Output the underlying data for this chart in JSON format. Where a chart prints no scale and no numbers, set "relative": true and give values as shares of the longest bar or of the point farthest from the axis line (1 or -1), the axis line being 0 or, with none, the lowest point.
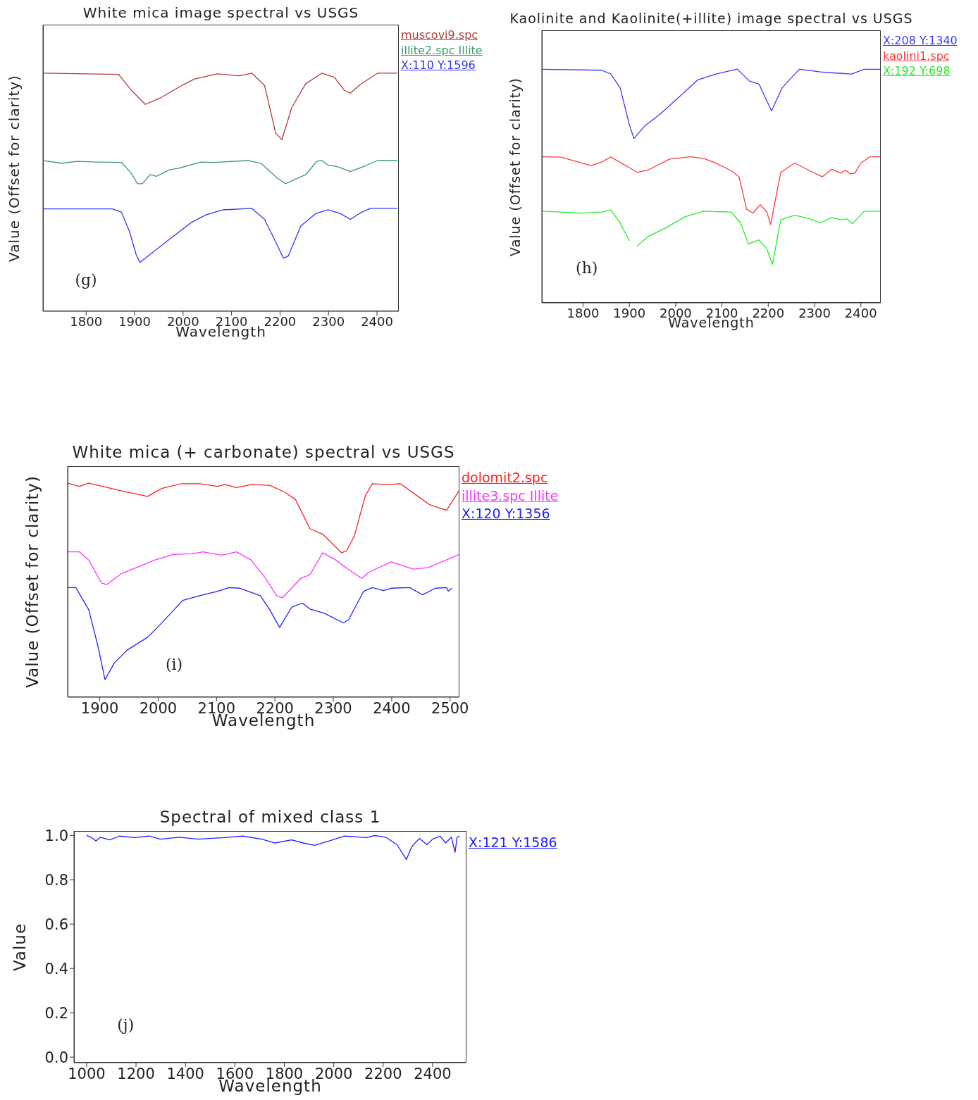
{
  "chart_data": [
    {
      "type": "line",
      "title": "White mica image spectral vs USGS",
      "xlabel": "Wavelength",
      "ylabel": "Value (Offset for clarity)",
      "relative": true,
      "tick_labels": "x",
      "legend": "right",
      "xlim": [
        1711,
        2445
      ],
      "xticks": [
        1800,
        1900,
        2000,
        2100,
        2200,
        2300,
        2400
      ],
      "annotations": [
        "(g)"
      ],
      "series": [
        {
          "name": "muscovi9.spc",
          "color": "#b03a3a",
          "x": [
            1712,
            1867,
            1893,
            1922,
            1952,
            1998,
            2024,
            2070,
            2116,
            2142,
            2168,
            2191,
            2204,
            2224,
            2253,
            2286,
            2312,
            2332,
            2345,
            2365,
            2401,
            2442
          ],
          "values": [
            1.0,
            0.995,
            0.929,
            0.869,
            0.895,
            0.949,
            0.976,
            0.997,
            0.989,
            1.0,
            0.949,
            0.748,
            0.721,
            0.855,
            0.956,
            1.0,
            0.983,
            0.929,
            0.916,
            0.952,
            1.0,
            1.0
          ]
        },
        {
          "name": "illite2.spc Illite",
          "color": "#3c9a6a",
          "x": [
            1712,
            1749,
            1782,
            1821,
            1873,
            1893,
            1906,
            1916,
            1932,
            1945,
            1972,
            1991,
            2037,
            2063,
            2135,
            2161,
            2194,
            2211,
            2253,
            2276,
            2286,
            2299,
            2319,
            2345,
            2371,
            2401,
            2442
          ],
          "values": [
            0.633,
            0.622,
            0.63,
            0.627,
            0.625,
            0.58,
            0.536,
            0.536,
            0.574,
            0.567,
            0.594,
            0.601,
            0.627,
            0.625,
            0.633,
            0.621,
            0.56,
            0.536,
            0.574,
            0.63,
            0.634,
            0.614,
            0.607,
            0.587,
            0.607,
            0.633,
            0.633
          ]
        },
        {
          "name": "X:110 Y:1596",
          "color": "#3333ff",
          "x": [
            1712,
            1854,
            1873,
            1890,
            1903,
            1911,
            1932,
            1978,
            2017,
            2047,
            2083,
            2142,
            2168,
            2194,
            2207,
            2217,
            2243,
            2273,
            2299,
            2325,
            2345,
            2368,
            2387,
            2442
          ],
          "values": [
            0.43,
            0.43,
            0.416,
            0.332,
            0.239,
            0.205,
            0.239,
            0.312,
            0.373,
            0.405,
            0.426,
            0.432,
            0.386,
            0.279,
            0.223,
            0.232,
            0.359,
            0.41,
            0.426,
            0.41,
            0.386,
            0.416,
            0.432,
            0.432
          ]
        }
      ]
    },
    {
      "type": "line",
      "title": "Kaolinite and Kaolinite(+illite) image spectral vs USGS",
      "xlabel": "Wavelength",
      "ylabel": "Value (Offset for clarity)",
      "relative": true,
      "tick_labels": "x",
      "legend": "right",
      "xlim": [
        1711,
        2443
      ],
      "xticks": [
        1800,
        1900,
        2000,
        2100,
        2200,
        2300,
        2400
      ],
      "annotations": [
        "(h)"
      ],
      "series": [
        {
          "name": "X:208 Y:1340",
          "color": "#3a3aff",
          "x": [
            1711,
            1840,
            1860,
            1880,
            1900,
            1910,
            1933,
            1967,
            2007,
            2047,
            2087,
            2133,
            2160,
            2180,
            2207,
            2230,
            2267,
            2313,
            2347,
            2380,
            2407,
            2443
          ],
          "values": [
            0.999,
            0.995,
            0.979,
            0.92,
            0.762,
            0.703,
            0.756,
            0.808,
            0.88,
            0.953,
            0.979,
            1.0,
            0.948,
            0.936,
            0.821,
            0.92,
            0.999,
            0.988,
            0.983,
            0.979,
            0.999,
            0.999
          ]
        },
        {
          "name": "kaolini1.spc",
          "color": "#ff3a3a",
          "x": [
            1711,
            1753,
            1787,
            1817,
            1840,
            1860,
            1917,
            1940,
            1987,
            2033,
            2060,
            2087,
            2120,
            2137,
            2153,
            2167,
            2183,
            2197,
            2205,
            2227,
            2257,
            2293,
            2317,
            2337,
            2357,
            2367,
            2377,
            2387,
            2400,
            2420,
            2443
          ],
          "values": [
            0.625,
            0.623,
            0.604,
            0.587,
            0.602,
            0.624,
            0.558,
            0.568,
            0.615,
            0.625,
            0.618,
            0.598,
            0.565,
            0.539,
            0.401,
            0.384,
            0.42,
            0.388,
            0.335,
            0.558,
            0.598,
            0.562,
            0.539,
            0.572,
            0.555,
            0.568,
            0.552,
            0.555,
            0.598,
            0.625,
            0.625
          ]
        },
        {
          "name": "X:192 Y:698",
          "color": "#22ee22",
          "x": [
            1711,
            1800,
            1840,
            1860,
            1880,
            1900,
            1908,
            1917,
            1940,
            1980,
            2020,
            2060,
            2120,
            2140,
            2157,
            2180,
            2197,
            2209,
            2227,
            2257,
            2287,
            2313,
            2337,
            2357,
            2370,
            2382,
            2407,
            2443
          ],
          "values": [
            0.392,
            0.384,
            0.388,
            0.397,
            0.342,
            0.265,
            null,
            0.243,
            0.283,
            0.322,
            0.368,
            0.392,
            0.388,
            0.342,
            0.252,
            0.269,
            0.23,
            0.164,
            0.355,
            0.375,
            0.361,
            0.342,
            0.364,
            0.355,
            0.359,
            0.338,
            0.392,
            0.392
          ]
        }
      ]
    },
    {
      "type": "line",
      "title": "White mica (+ carbonate) spectral vs USGS",
      "xlabel": "Wavelength",
      "ylabel": "Value (Offset for clarity)",
      "relative": true,
      "tick_labels": "x",
      "legend": "right",
      "xlim": [
        1845,
        2516
      ],
      "xticks": [
        1900,
        2000,
        2100,
        2200,
        2300,
        2400,
        2500
      ],
      "annotations": [
        "(i)"
      ],
      "series": [
        {
          "name": "dolomit2.spc",
          "color": "#ff2020",
          "x": [
            1845,
            1865,
            1881,
            1919,
            1944,
            1982,
            2007,
            2039,
            2071,
            2102,
            2115,
            2134,
            2159,
            2191,
            2216,
            2235,
            2260,
            2282,
            2314,
            2323,
            2336,
            2355,
            2367,
            2393,
            2415,
            2443,
            2465,
            2494,
            2516
          ],
          "values": [
            1.0,
            0.985,
            1.0,
            0.976,
            0.959,
            0.938,
            0.976,
            0.997,
            0.997,
            0.985,
            0.993,
            0.979,
            0.993,
            0.99,
            0.959,
            0.924,
            0.787,
            0.761,
            0.675,
            0.684,
            0.753,
            0.942,
            0.997,
            0.993,
            0.997,
            0.942,
            0.899,
            0.873,
            0.967
          ]
        },
        {
          "name": "illite3.spc Illite",
          "color": "#ff33ff",
          "x": [
            1845,
            1865,
            1881,
            1903,
            1912,
            1937,
            1969,
            1995,
            2026,
            2058,
            2077,
            2108,
            2134,
            2159,
            2184,
            2203,
            2213,
            2244,
            2260,
            2282,
            2304,
            2330,
            2349,
            2361,
            2399,
            2437,
            2462,
            2516
          ],
          "values": [
            0.679,
            0.679,
            0.641,
            0.533,
            0.526,
            0.577,
            0.612,
            0.641,
            0.667,
            0.67,
            0.679,
            0.663,
            0.679,
            0.641,
            0.555,
            0.474,
            0.464,
            0.555,
            0.572,
            0.675,
            0.641,
            0.589,
            0.555,
            0.584,
            0.632,
            0.598,
            0.605,
            0.667
          ]
        },
        {
          "name": "X:120 Y:1356",
          "color": "#2222ff",
          "x": [
            1845,
            1859,
            1881,
            1897,
            1909,
            1925,
            1947,
            1982,
            2007,
            2042,
            2071,
            2102,
            2121,
            2140,
            2175,
            2191,
            2208,
            2229,
            2247,
            2260,
            2285,
            2317,
            2326,
            2352,
            2367,
            2386,
            2399,
            2431,
            2453,
            2475,
            2494,
            2497,
            2503
          ],
          "values": [
            0.512,
            0.512,
            0.409,
            0.237,
            0.082,
            0.16,
            0.22,
            0.28,
            0.349,
            0.452,
            0.474,
            0.495,
            0.512,
            0.509,
            0.474,
            0.409,
            0.326,
            0.421,
            0.44,
            0.412,
            0.392,
            0.347,
            0.361,
            0.495,
            0.512,
            0.498,
            0.509,
            0.512,
            0.478,
            0.509,
            0.512,
            0.495,
            0.509
          ]
        }
      ]
    },
    {
      "type": "line",
      "title": "Spectral of mixed class 1",
      "xlabel": "Wavelength",
      "ylabel": "Value",
      "legend": "right",
      "xlim": [
        949,
        2537
      ],
      "xticks": [
        1000,
        1200,
        1400,
        1600,
        1800,
        2000,
        2200,
        2400
      ],
      "ylim": [
        -0.025,
        1.02
      ],
      "yticks": [
        {
          "value": 0,
          "label": "0.0"
        },
        0.2,
        0.4,
        0.6,
        0.8,
        {
          "value": 1,
          "label": "1.0"
        }
      ],
      "annotations": [
        "(j)"
      ],
      "series": [
        {
          "name": "X:121 Y:1586",
          "color": "#2020ff",
          "x": [
            1000,
            1018,
            1038,
            1056,
            1094,
            1132,
            1193,
            1254,
            1299,
            1375,
            1451,
            1557,
            1633,
            1709,
            1762,
            1830,
            1876,
            1922,
            1982,
            2043,
            2134,
            2165,
            2210,
            2256,
            2294,
            2316,
            2347,
            2377,
            2400,
            2430,
            2453,
            2476,
            2491,
            2499,
            2511
          ],
          "values": [
            1.0,
            0.992,
            0.975,
            0.992,
            0.98,
            0.997,
            0.99,
            0.997,
            0.983,
            0.992,
            0.983,
            0.99,
            0.997,
            0.983,
            0.966,
            0.98,
            0.966,
            0.955,
            0.975,
            0.997,
            0.99,
            1.0,
            0.992,
            0.958,
            0.891,
            0.95,
            0.987,
            0.958,
            0.983,
            0.997,
            0.966,
            0.992,
            0.924,
            0.992,
            0.997
          ]
        }
      ]
    }
  ]
}
